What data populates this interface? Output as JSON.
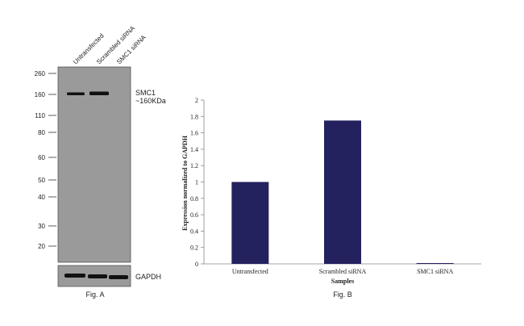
{
  "blot": {
    "lane_labels": [
      "Untransfected",
      "Scrambled siRNA",
      "SMC1 siRNA"
    ],
    "ladder": [
      "260",
      "160",
      "110",
      "80",
      "60",
      "50",
      "40",
      "30",
      "20"
    ],
    "band_label_line1": "SMC1",
    "band_label_line2": "~160KDa",
    "control_label": "GAPDH",
    "caption": "Fig. A",
    "panel_color": "#9a9a9a",
    "band_color": "#111111"
  },
  "chart_data": {
    "type": "bar",
    "categories": [
      "Untransfected",
      "Scrambled siRNA",
      "SMC1 siRNA"
    ],
    "values": [
      1.0,
      1.75,
      0.01
    ],
    "ylabel": "Expression normalized to GAPDH",
    "xlabel": "Samples",
    "ylim": [
      0,
      2
    ],
    "yticks": [
      "0",
      "0.2",
      "0.4",
      "0.6",
      "0.8",
      "1",
      "1.2",
      "1.4",
      "1.6",
      "1.8",
      "2"
    ],
    "caption": "Fig. B",
    "bar_color": "#24215f",
    "grid": false
  }
}
